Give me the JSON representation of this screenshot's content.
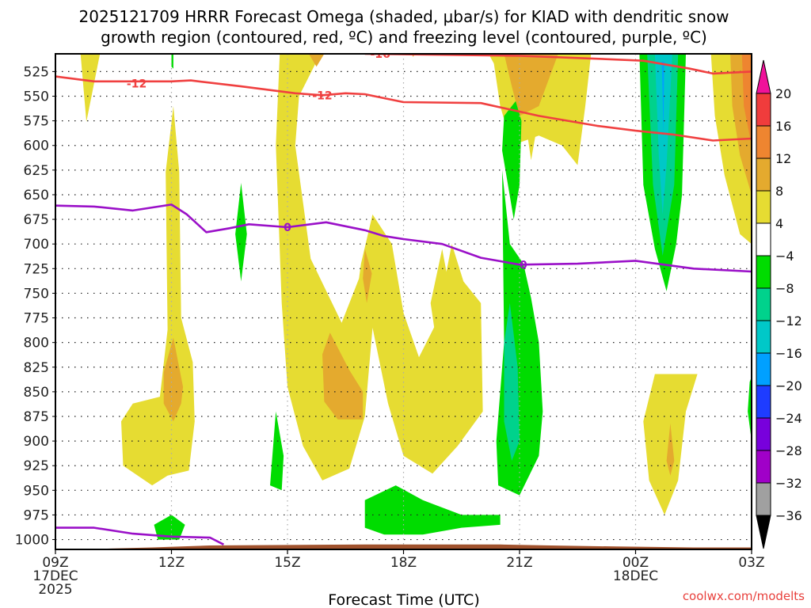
{
  "chart_data": {
    "type": "heatmap",
    "title_lines": [
      "2025121709 HRRR Forecast Omega (shaded, μbar/s) for KIAD with dendritic snow",
      "growth region (contoured, red, ºC) and freezing level (contoured, purple, ºC)"
    ],
    "xlabel": "Forecast Time (UTC)",
    "ylabel": "",
    "credit": "coolwx.com/modelts",
    "x_ticks": [
      {
        "hour": 0,
        "lines": [
          "09Z",
          "17DEC",
          "2025"
        ]
      },
      {
        "hour": 3,
        "lines": [
          "12Z"
        ]
      },
      {
        "hour": 6,
        "lines": [
          "15Z"
        ]
      },
      {
        "hour": 9,
        "lines": [
          "18Z"
        ]
      },
      {
        "hour": 12,
        "lines": [
          "21Z"
        ]
      },
      {
        "hour": 15,
        "lines": [
          "00Z",
          "18DEC"
        ]
      },
      {
        "hour": 18,
        "lines": [
          "03Z"
        ]
      }
    ],
    "xlim_hours": [
      0,
      18
    ],
    "y_ticks": [
      525,
      550,
      575,
      600,
      625,
      650,
      675,
      700,
      725,
      750,
      775,
      800,
      825,
      850,
      875,
      900,
      925,
      950,
      975,
      1000
    ],
    "ylim_hpa": [
      1010,
      507
    ],
    "grid": true,
    "colorbar": {
      "position": "right",
      "levels": [
        20,
        16,
        12,
        8,
        4,
        -4,
        -8,
        -12,
        -16,
        -20,
        -24,
        -28,
        -32,
        -36
      ],
      "colors": [
        "#f03c3c",
        "#ee8530",
        "#e4aa2e",
        "#e6dc32",
        "#ffffff",
        "#00dc00",
        "#00d28c",
        "#00c8c8",
        "#00a0ff",
        "#1e3cff",
        "#7800dc",
        "#a000c8",
        "#a0a0a0"
      ],
      "over_color": "#f0129a",
      "under_color": "#000000"
    },
    "fill_colors": {
      "y4": "#e6dc32",
      "y8": "#e4aa2e",
      "y12": "#ee8530",
      "g4": "#00dc00",
      "g8": "#00d28c",
      "g12": "#00c8c8",
      "g16": "#00a0ff",
      "ground": "#a0522d"
    },
    "omega_regions": [
      {
        "level": "y4",
        "pts": [
          [
            0.65,
            507
          ],
          [
            1.15,
            507
          ],
          [
            0.8,
            576
          ]
        ]
      },
      {
        "level": "y4",
        "pts": [
          [
            2.85,
            627
          ],
          [
            3.05,
            560
          ],
          [
            3.2,
            627
          ],
          [
            3.25,
            775
          ],
          [
            3.55,
            820
          ],
          [
            3.6,
            880
          ],
          [
            3.45,
            930
          ],
          [
            2.9,
            935
          ],
          [
            2.5,
            945
          ],
          [
            1.75,
            925
          ],
          [
            1.7,
            880
          ],
          [
            2.0,
            862
          ],
          [
            2.7,
            855
          ],
          [
            2.9,
            787
          ]
        ]
      },
      {
        "level": "y8",
        "pts": [
          [
            3.05,
            795
          ],
          [
            3.3,
            845
          ],
          [
            3.25,
            862
          ],
          [
            3.05,
            880
          ],
          [
            2.8,
            862
          ],
          [
            2.8,
            830
          ]
        ]
      },
      {
        "level": "y4",
        "pts": [
          [
            5.8,
            507
          ],
          [
            6.85,
            507
          ],
          [
            6.3,
            550
          ],
          [
            6.2,
            600
          ],
          [
            6.6,
            715
          ],
          [
            7.4,
            780
          ],
          [
            7.85,
            735
          ],
          [
            7.9,
            720
          ],
          [
            8.2,
            670
          ],
          [
            8.7,
            700
          ],
          [
            9.0,
            770
          ],
          [
            9.4,
            815
          ],
          [
            9.85,
            780
          ],
          [
            10.25,
            700
          ],
          [
            10.55,
            738
          ],
          [
            11.0,
            760
          ],
          [
            11.05,
            870
          ],
          [
            10.4,
            905
          ],
          [
            9.75,
            933
          ],
          [
            9.0,
            915
          ],
          [
            8.6,
            862
          ],
          [
            8.2,
            785
          ],
          [
            8.0,
            875
          ],
          [
            7.6,
            928
          ],
          [
            6.9,
            940
          ],
          [
            6.4,
            905
          ],
          [
            6.0,
            845
          ],
          [
            5.85,
            760
          ],
          [
            5.7,
            600
          ]
        ]
      },
      {
        "level": "y8",
        "pts": [
          [
            6.55,
            507
          ],
          [
            6.95,
            507
          ],
          [
            6.75,
            520
          ]
        ]
      },
      {
        "level": "y8",
        "pts": [
          [
            7.1,
            790
          ],
          [
            7.6,
            828
          ],
          [
            7.95,
            850
          ],
          [
            7.95,
            878
          ],
          [
            7.3,
            878
          ],
          [
            6.95,
            860
          ],
          [
            6.9,
            812
          ]
        ]
      },
      {
        "level": "y8",
        "pts": [
          [
            8.0,
            705
          ],
          [
            8.18,
            730
          ],
          [
            8.05,
            760
          ],
          [
            7.95,
            735
          ]
        ]
      },
      {
        "level": "y8",
        "pts": [
          [
            9.2,
            507
          ],
          [
            9.3,
            507
          ],
          [
            9.25,
            510
          ]
        ]
      },
      {
        "level": "y4",
        "pts": [
          [
            10.0,
            705
          ],
          [
            10.4,
            790
          ],
          [
            10.6,
            858
          ],
          [
            10.0,
            840
          ],
          [
            9.7,
            760
          ]
        ]
      },
      {
        "level": "y4",
        "pts": [
          [
            11.2,
            507
          ],
          [
            12.8,
            507
          ],
          [
            12.5,
            570
          ],
          [
            12.3,
            615
          ],
          [
            12.15,
            575
          ]
        ]
      },
      {
        "level": "y4",
        "pts": [
          [
            11.3,
            507
          ],
          [
            13.85,
            507
          ],
          [
            13.7,
            560
          ],
          [
            13.5,
            620
          ],
          [
            13.1,
            600
          ],
          [
            12.5,
            590
          ],
          [
            11.8,
            600
          ],
          [
            11.5,
            560
          ]
        ]
      },
      {
        "level": "y8",
        "pts": [
          [
            11.6,
            507
          ],
          [
            13.0,
            507
          ],
          [
            12.5,
            560
          ],
          [
            12.0,
            570
          ],
          [
            11.8,
            540
          ]
        ]
      },
      {
        "level": "y4",
        "pts": [
          [
            16.95,
            507
          ],
          [
            18.0,
            507
          ],
          [
            18.0,
            700
          ],
          [
            17.7,
            690
          ],
          [
            17.3,
            630
          ],
          [
            17.05,
            570
          ]
        ]
      },
      {
        "level": "y8",
        "pts": [
          [
            17.45,
            507
          ],
          [
            18.0,
            507
          ],
          [
            18.0,
            650
          ],
          [
            17.7,
            610
          ],
          [
            17.5,
            560
          ]
        ]
      },
      {
        "level": "y12",
        "pts": [
          [
            17.75,
            507
          ],
          [
            18.0,
            507
          ],
          [
            18.0,
            600
          ],
          [
            17.8,
            560
          ]
        ]
      },
      {
        "level": "y4",
        "pts": [
          [
            15.5,
            832
          ],
          [
            16.6,
            832
          ],
          [
            16.3,
            870
          ],
          [
            16.1,
            940
          ],
          [
            15.75,
            975
          ],
          [
            15.35,
            940
          ],
          [
            15.2,
            880
          ]
        ]
      },
      {
        "level": "y8",
        "pts": [
          [
            15.9,
            882
          ],
          [
            16.0,
            920
          ],
          [
            15.9,
            935
          ],
          [
            15.8,
            920
          ]
        ]
      },
      {
        "level": "g4",
        "pts": [
          [
            15.1,
            507
          ],
          [
            16.3,
            507
          ],
          [
            16.2,
            650
          ],
          [
            16.05,
            700
          ],
          [
            15.8,
            748
          ],
          [
            15.5,
            705
          ],
          [
            15.2,
            640
          ]
        ]
      },
      {
        "level": "g8",
        "pts": [
          [
            15.3,
            507
          ],
          [
            16.1,
            507
          ],
          [
            16.0,
            640
          ],
          [
            15.7,
            712
          ],
          [
            15.45,
            640
          ]
        ]
      },
      {
        "level": "g12",
        "pts": [
          [
            15.5,
            507
          ],
          [
            15.95,
            507
          ],
          [
            15.8,
            620
          ],
          [
            15.7,
            670
          ],
          [
            15.6,
            610
          ]
        ]
      },
      {
        "level": "g16",
        "pts": [
          [
            15.68,
            515
          ],
          [
            15.74,
            515
          ],
          [
            15.72,
            590
          ]
        ]
      },
      {
        "level": "g4",
        "pts": [
          [
            11.55,
            625
          ],
          [
            11.75,
            700
          ],
          [
            12.1,
            720
          ],
          [
            12.3,
            755
          ],
          [
            12.5,
            800
          ],
          [
            12.6,
            870
          ],
          [
            12.5,
            915
          ],
          [
            12.0,
            955
          ],
          [
            11.45,
            945
          ],
          [
            11.4,
            900
          ],
          [
            11.6,
            800
          ]
        ]
      },
      {
        "level": "g8",
        "pts": [
          [
            11.75,
            760
          ],
          [
            11.95,
            825
          ],
          [
            12.0,
            900
          ],
          [
            11.8,
            920
          ],
          [
            11.6,
            880
          ],
          [
            11.6,
            800
          ]
        ]
      },
      {
        "level": "g4",
        "pts": [
          [
            11.9,
            555
          ],
          [
            12.05,
            575
          ],
          [
            12.0,
            640
          ],
          [
            11.85,
            675
          ],
          [
            11.55,
            605
          ],
          [
            11.6,
            570
          ]
        ]
      },
      {
        "level": "g4",
        "pts": [
          [
            8.0,
            960
          ],
          [
            8.8,
            945
          ],
          [
            9.5,
            960
          ],
          [
            10.5,
            975
          ],
          [
            11.5,
            975
          ],
          [
            11.5,
            985
          ],
          [
            10.5,
            988
          ],
          [
            9.5,
            995
          ],
          [
            8.5,
            995
          ],
          [
            8.0,
            988
          ]
        ]
      },
      {
        "level": "g4",
        "pts": [
          [
            5.7,
            870
          ],
          [
            5.9,
            915
          ],
          [
            5.85,
            950
          ],
          [
            5.55,
            945
          ]
        ]
      },
      {
        "level": "g4",
        "pts": [
          [
            4.8,
            638
          ],
          [
            4.95,
            690
          ],
          [
            4.8,
            738
          ],
          [
            4.65,
            690
          ]
        ]
      },
      {
        "level": "g4",
        "pts": [
          [
            2.55,
            985
          ],
          [
            3.0,
            975
          ],
          [
            3.35,
            985
          ],
          [
            3.2,
            1000
          ],
          [
            2.65,
            1000
          ]
        ]
      },
      {
        "level": "g4",
        "pts": [
          [
            17.95,
            840
          ],
          [
            18.0,
            835
          ],
          [
            18.0,
            900
          ],
          [
            17.9,
            870
          ]
        ]
      },
      {
        "level": "g4",
        "pts": [
          [
            3.0,
            507
          ],
          [
            3.05,
            507
          ],
          [
            3.05,
            522
          ],
          [
            3.0,
            520
          ]
        ]
      }
    ],
    "red_contours": [
      {
        "label": "-12",
        "label_positions": [
          [
            2.1,
            537
          ],
          [
            6.9,
            549
          ]
        ],
        "pts": [
          [
            0,
            530
          ],
          [
            1.0,
            535
          ],
          [
            2.0,
            535
          ],
          [
            3.0,
            535
          ],
          [
            3.5,
            534
          ],
          [
            4.8,
            540
          ],
          [
            6.2,
            547
          ],
          [
            6.9,
            549
          ],
          [
            7.5,
            547
          ],
          [
            8.0,
            548
          ],
          [
            9.0,
            556
          ],
          [
            11.0,
            557
          ],
          [
            12.5,
            570
          ],
          [
            14.0,
            580
          ],
          [
            15.0,
            585
          ],
          [
            16.0,
            589
          ],
          [
            17.0,
            595
          ],
          [
            18.0,
            593
          ]
        ]
      },
      {
        "label": "-16",
        "label_positions": [
          [
            8.4,
            507
          ]
        ],
        "pts": [
          [
            8.0,
            507
          ],
          [
            10.0,
            508
          ],
          [
            12.0,
            509
          ],
          [
            14.0,
            512
          ],
          [
            15.2,
            514
          ],
          [
            16.4,
            522
          ],
          [
            17.0,
            527
          ],
          [
            18.0,
            525
          ]
        ]
      }
    ],
    "purple_contours": [
      {
        "label": "0",
        "label_positions": [
          [
            6.0,
            683
          ],
          [
            12.1,
            721
          ]
        ],
        "pts": [
          [
            0,
            661
          ],
          [
            1.0,
            662
          ],
          [
            2.0,
            666
          ],
          [
            3.0,
            660
          ],
          [
            3.4,
            670
          ],
          [
            3.9,
            688
          ],
          [
            4.5,
            684
          ],
          [
            5.0,
            680
          ],
          [
            6.0,
            683
          ],
          [
            7.0,
            678
          ],
          [
            8.0,
            686
          ],
          [
            8.5,
            692
          ],
          [
            9.0,
            695
          ],
          [
            10.0,
            700
          ],
          [
            11.0,
            714
          ],
          [
            12.0,
            721
          ],
          [
            13.5,
            720
          ],
          [
            15.0,
            717
          ],
          [
            16.5,
            725
          ],
          [
            18.0,
            728
          ]
        ]
      },
      {
        "label": "",
        "label_positions": [],
        "pts": [
          [
            0,
            988
          ],
          [
            1.0,
            988
          ],
          [
            2.0,
            994
          ],
          [
            3.0,
            997
          ],
          [
            4.0,
            998
          ],
          [
            4.35,
            1005
          ]
        ]
      }
    ],
    "ground_surface": [
      [
        0,
        1010
      ],
      [
        0.5,
        1010
      ],
      [
        1.5,
        1009
      ],
      [
        2.5,
        1008
      ],
      [
        4.0,
        1006
      ],
      [
        8.0,
        1005
      ],
      [
        11.5,
        1005
      ],
      [
        12.8,
        1006
      ],
      [
        14.5,
        1007
      ],
      [
        16.5,
        1008
      ],
      [
        18.0,
        1008
      ]
    ]
  }
}
